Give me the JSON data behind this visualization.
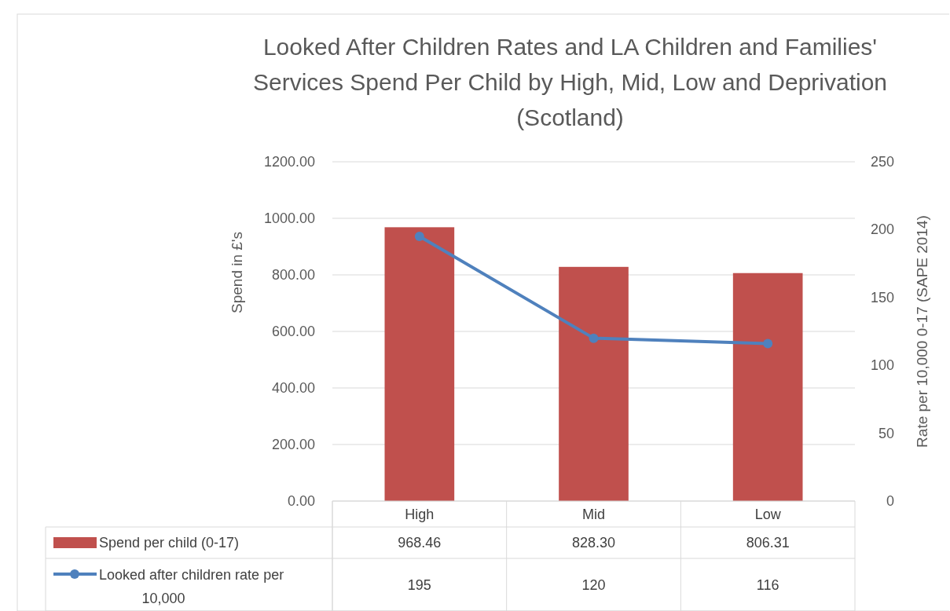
{
  "chart_data": {
    "type": "bar",
    "title": "Looked After Children Rates and LA Children and Families' Services Spend Per Child by High, Mid, Low and Deprivation (Scotland)",
    "ylabel": "Spend in £'s",
    "y2label": "Rate per 10,000 0-17 (SAPE 2014)",
    "categories": [
      "High",
      "Mid",
      "Low"
    ],
    "series": [
      {
        "name": "Spend per child (0-17)",
        "color": "#c0504d",
        "values": [
          968.46,
          828.3,
          806.31
        ],
        "value_labels": [
          "968.46",
          "828.30",
          "806.31"
        ]
      },
      {
        "name": "Looked after children rate per 10,000",
        "type": "line",
        "axis": "y2",
        "color": "#4f81bd",
        "values": [
          195,
          120,
          116
        ]
      }
    ],
    "ylim": [
      0,
      1200
    ],
    "yticks": [
      {
        "value": 0,
        "label": "0.00"
      },
      {
        "value": 200,
        "label": "200.00"
      },
      {
        "value": 400,
        "label": "400.00"
      },
      {
        "value": 600,
        "label": "600.00"
      },
      {
        "value": 800,
        "label": "800.00"
      },
      {
        "value": 1000,
        "label": "1000.00"
      },
      {
        "value": 1200,
        "label": "1200.00"
      }
    ],
    "y2lim": [
      0,
      250
    ],
    "y2ticks": [
      0,
      50,
      100,
      150,
      200,
      250
    ],
    "grid": "y",
    "legend": "bottom",
    "marker": "circle",
    "data_labels": true
  }
}
